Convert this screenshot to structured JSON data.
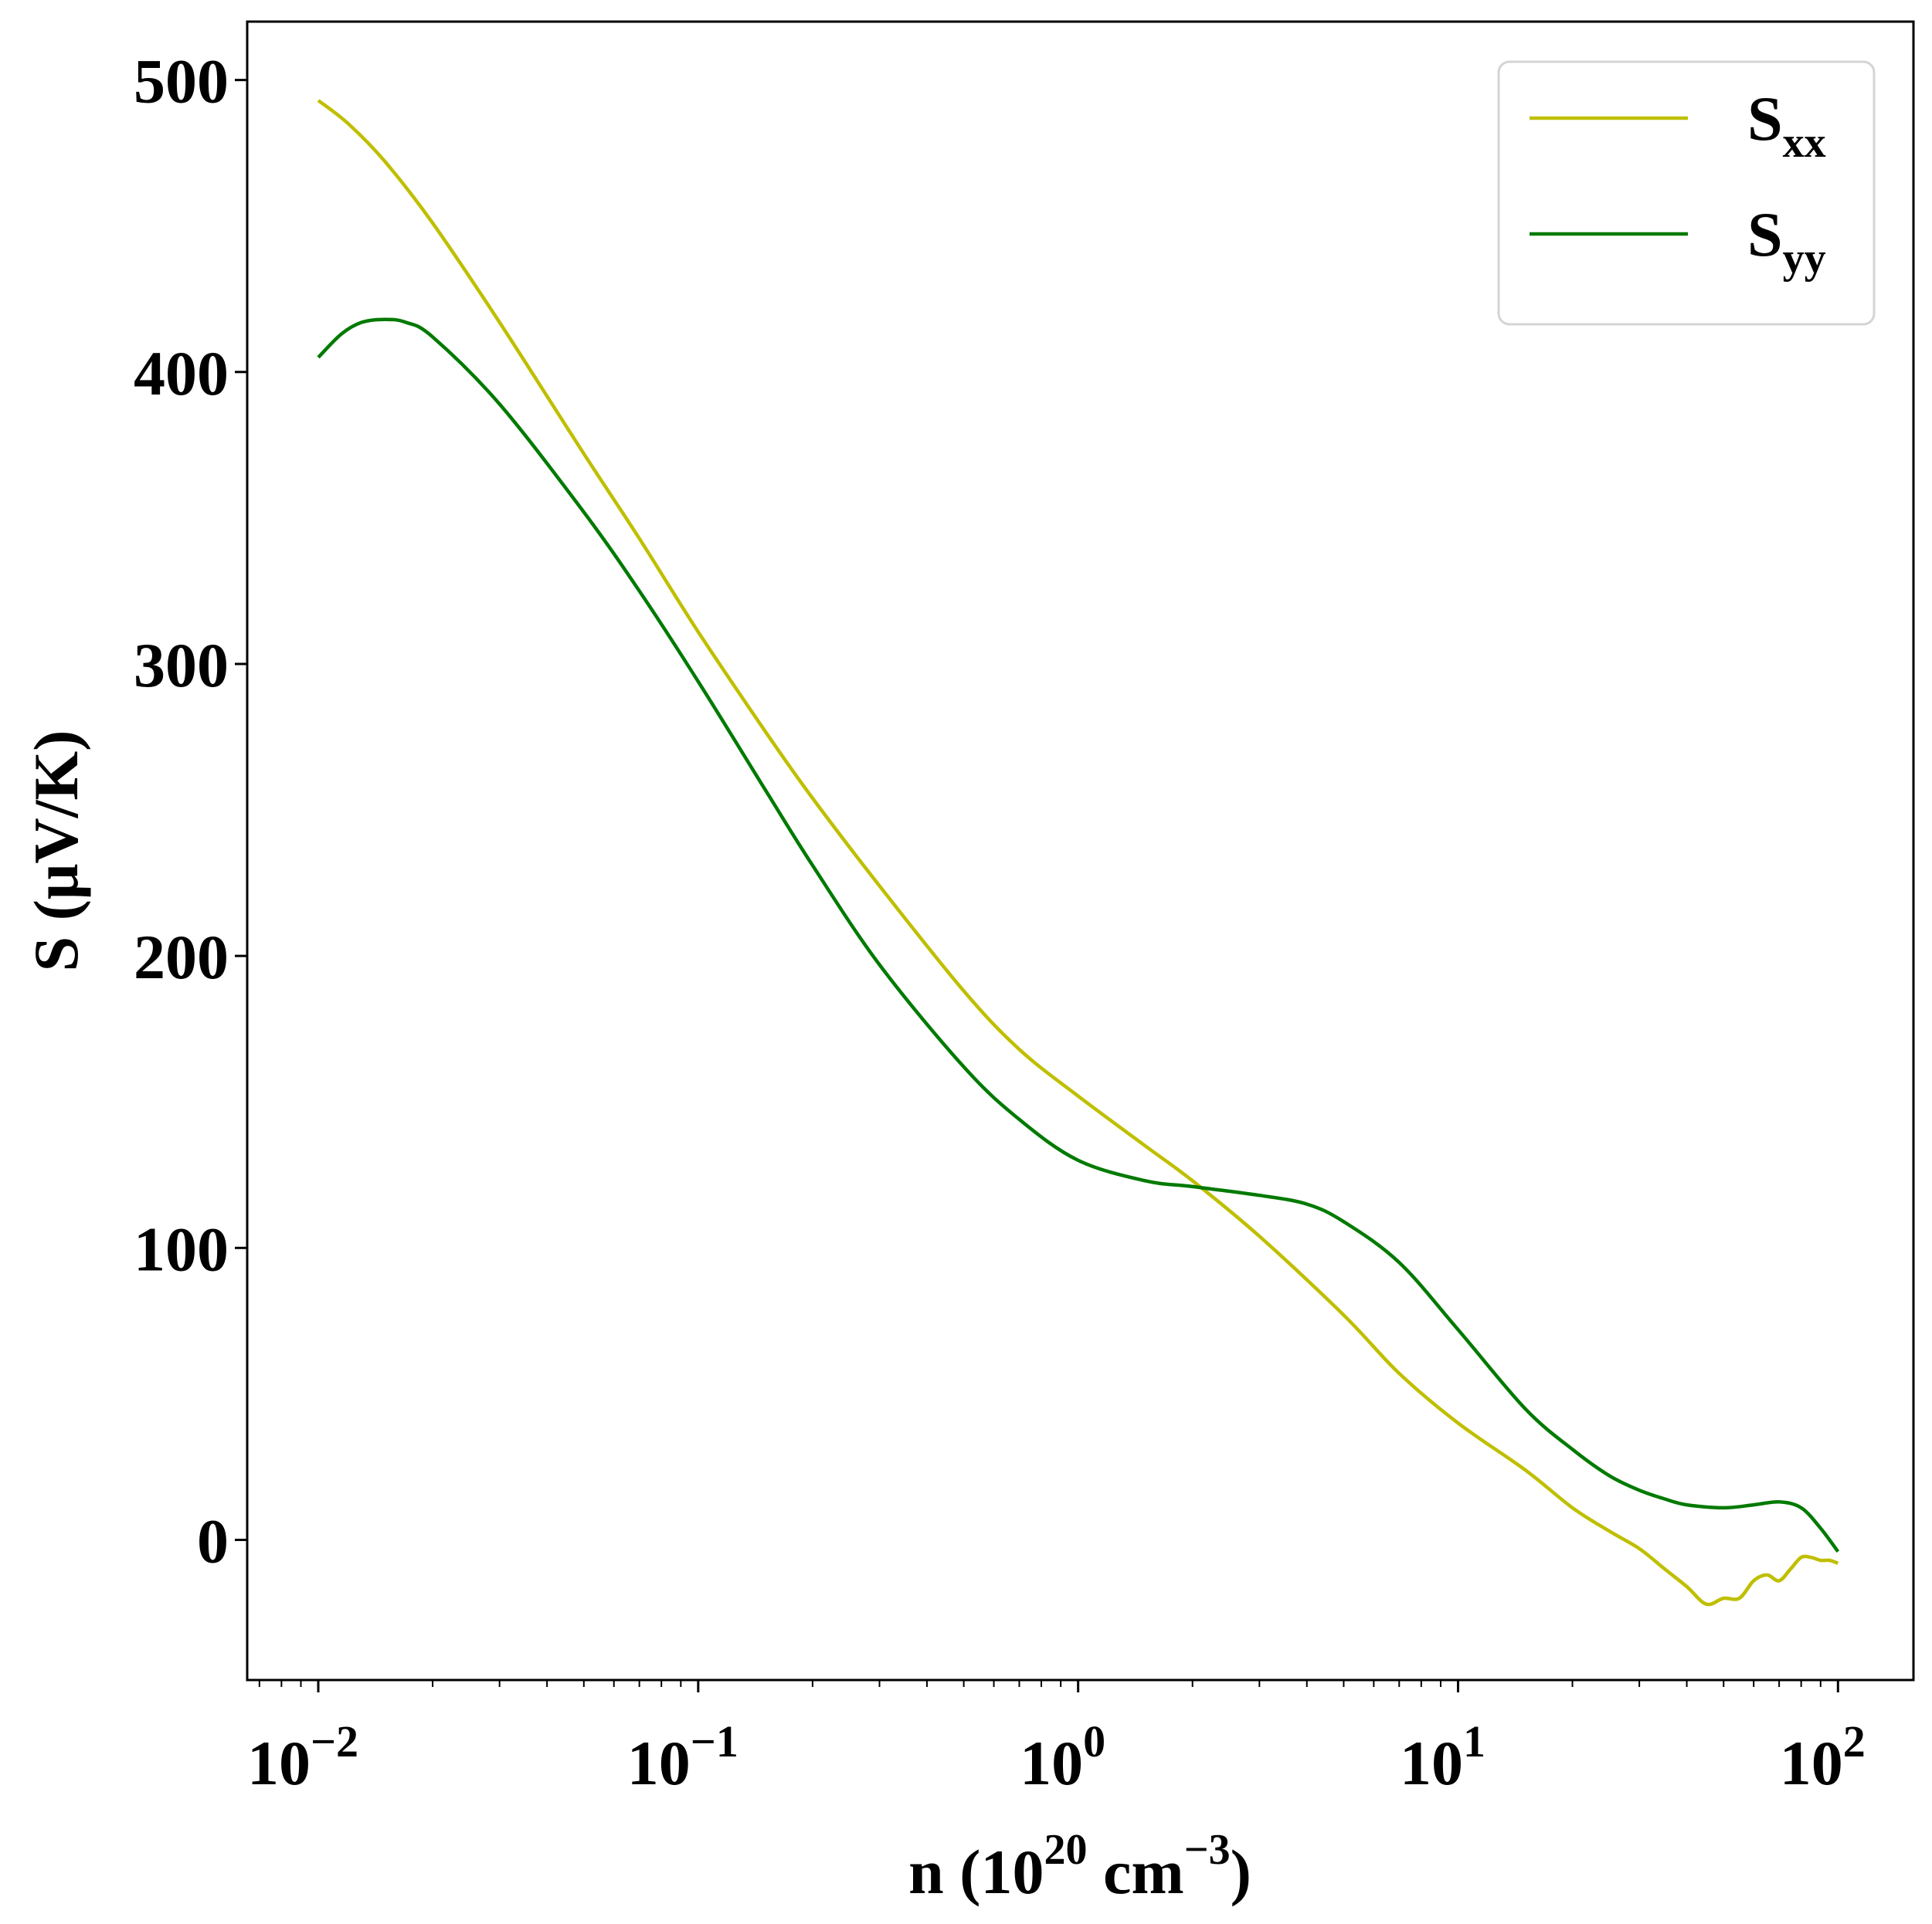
{
  "chart_data": {
    "type": "line",
    "title": "",
    "xlabel": {
      "base": "n (10",
      "sup1": "20",
      "mid": " cm",
      "sup2": "−3",
      "end": ")"
    },
    "ylabel": "S (μV/K)",
    "xscale": "log",
    "xlim": [
      0.0065,
      158
    ],
    "ylim": [
      -48,
      520
    ],
    "grid": false,
    "legend_position": "top-right",
    "x_ticks": [
      {
        "value": 0.01,
        "base": "10",
        "exp": "−2"
      },
      {
        "value": 0.1,
        "base": "10",
        "exp": "−1"
      },
      {
        "value": 1,
        "base": "10",
        "exp": "0"
      },
      {
        "value": 10,
        "base": "10",
        "exp": "1"
      },
      {
        "value": 100,
        "base": "10",
        "exp": "2"
      }
    ],
    "y_ticks": [
      0,
      100,
      200,
      300,
      400,
      500
    ],
    "y_tick_labels": [
      "0",
      "100",
      "200",
      "300",
      "400",
      "500"
    ],
    "series": [
      {
        "name": "S",
        "subscript": "xx",
        "color": "#bfbf00",
        "x": [
          0.01,
          0.012,
          0.015,
          0.02,
          0.03,
          0.05,
          0.07,
          0.1,
          0.15,
          0.2,
          0.3,
          0.5,
          0.7,
          1,
          1.5,
          2,
          3,
          5,
          7,
          10,
          15,
          20,
          25,
          30,
          35,
          40,
          45,
          50,
          55,
          60,
          65,
          70,
          75,
          80,
          85,
          90,
          95,
          100
        ],
        "y": [
          493,
          485,
          472,
          451,
          417,
          372,
          343,
          311,
          277,
          254,
          224,
          188,
          168,
          152,
          135,
          123,
          104,
          77,
          57,
          40,
          24,
          11,
          3,
          -3,
          -10,
          -16,
          -22,
          -20,
          -20,
          -14,
          -12,
          -14,
          -10,
          -6,
          -6,
          -7,
          -7,
          -8
        ]
      },
      {
        "name": "S",
        "subscript": "yy",
        "color": "#007a00",
        "x": [
          0.01,
          0.0115,
          0.013,
          0.015,
          0.017,
          0.02,
          0.03,
          0.05,
          0.07,
          0.1,
          0.15,
          0.2,
          0.3,
          0.5,
          0.7,
          1,
          1.5,
          2,
          3,
          4,
          5,
          7,
          10,
          15,
          20,
          25,
          30,
          35,
          40,
          50,
          60,
          70,
          80,
          90,
          100
        ],
        "y": [
          405,
          413,
          417,
          418,
          417,
          412,
          389,
          352,
          325,
          294,
          257,
          231,
          197,
          162,
          144,
          130,
          123,
          121,
          118,
          115,
          109,
          95,
          72,
          45,
          31,
          22,
          17,
          14,
          12,
          11,
          12,
          13,
          11,
          4,
          -4
        ]
      }
    ]
  }
}
